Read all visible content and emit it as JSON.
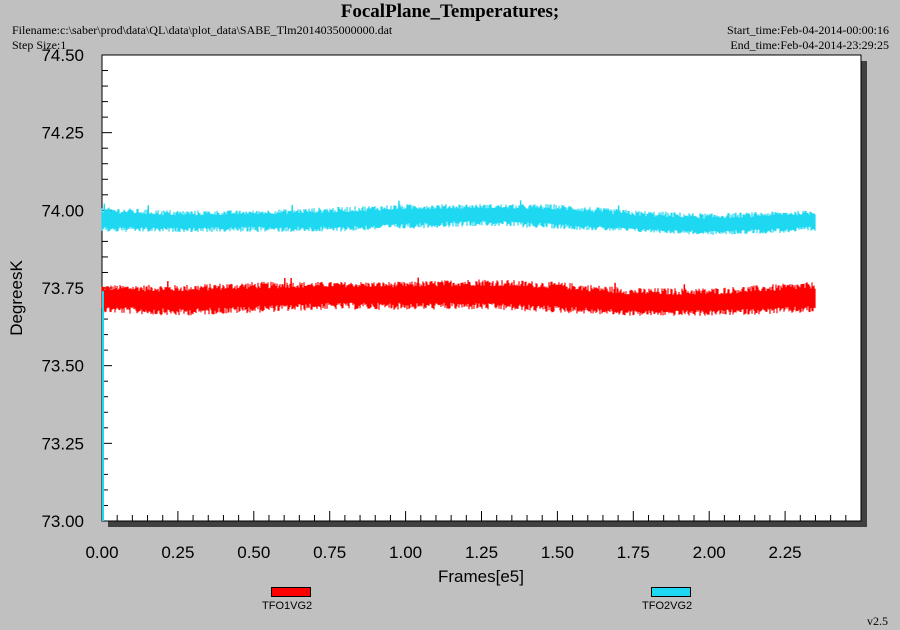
{
  "header": {
    "title": "FocalPlane_Temperatures;",
    "filename": "Filename:c:\\saber\\prod\\data\\QL\\data\\plot_data\\SABE_Tlm2014035000000.dat",
    "step_size": "Step Size:1",
    "start_time": "Start_time:Feb-04-2014-00:00:16",
    "end_time": "End_time:Feb-04-2014-23:29:25",
    "version": "v2.5"
  },
  "chart_data": {
    "type": "line",
    "title": "FocalPlane_Temperatures;",
    "xlabel": "Frames[e5]",
    "ylabel": "DegreesK",
    "xlim": [
      0.0,
      2.5
    ],
    "ylim": [
      73.0,
      74.5
    ],
    "x_ticks": [
      "0.00",
      "0.25",
      "0.50",
      "0.75",
      "1.00",
      "1.25",
      "1.50",
      "1.75",
      "2.00",
      "2.25"
    ],
    "y_ticks": [
      "73.00",
      "73.25",
      "73.50",
      "73.75",
      "74.00",
      "74.25",
      "74.50"
    ],
    "grid": false,
    "legend_position": "bottom",
    "series": [
      {
        "name": "TFO1VG2",
        "color": "#ff0000",
        "x": [
          0.0,
          0.25,
          0.5,
          0.75,
          1.0,
          1.25,
          1.5,
          1.75,
          2.0,
          2.35
        ],
        "center": [
          73.72,
          73.71,
          73.72,
          73.73,
          73.73,
          73.73,
          73.72,
          73.7,
          73.7,
          73.72
        ],
        "low": [
          73.67,
          73.66,
          73.67,
          73.68,
          73.68,
          73.68,
          73.67,
          73.66,
          73.66,
          73.67
        ],
        "high": [
          73.76,
          73.76,
          73.77,
          73.77,
          73.77,
          73.78,
          73.77,
          73.75,
          73.75,
          73.77
        ]
      },
      {
        "name": "TFO2VG2",
        "color": "#1ed7f0",
        "x": [
          0.0,
          0.25,
          0.5,
          0.75,
          1.0,
          1.25,
          1.5,
          1.75,
          2.0,
          2.35
        ],
        "center": [
          73.97,
          73.96,
          73.97,
          73.97,
          73.98,
          73.99,
          73.98,
          73.96,
          73.95,
          73.97
        ],
        "low": [
          73.93,
          73.93,
          73.93,
          73.93,
          73.94,
          73.95,
          73.94,
          73.93,
          73.92,
          73.93
        ],
        "high": [
          74.01,
          74.0,
          74.0,
          74.01,
          74.02,
          74.02,
          74.02,
          74.0,
          73.99,
          74.0
        ]
      }
    ]
  }
}
